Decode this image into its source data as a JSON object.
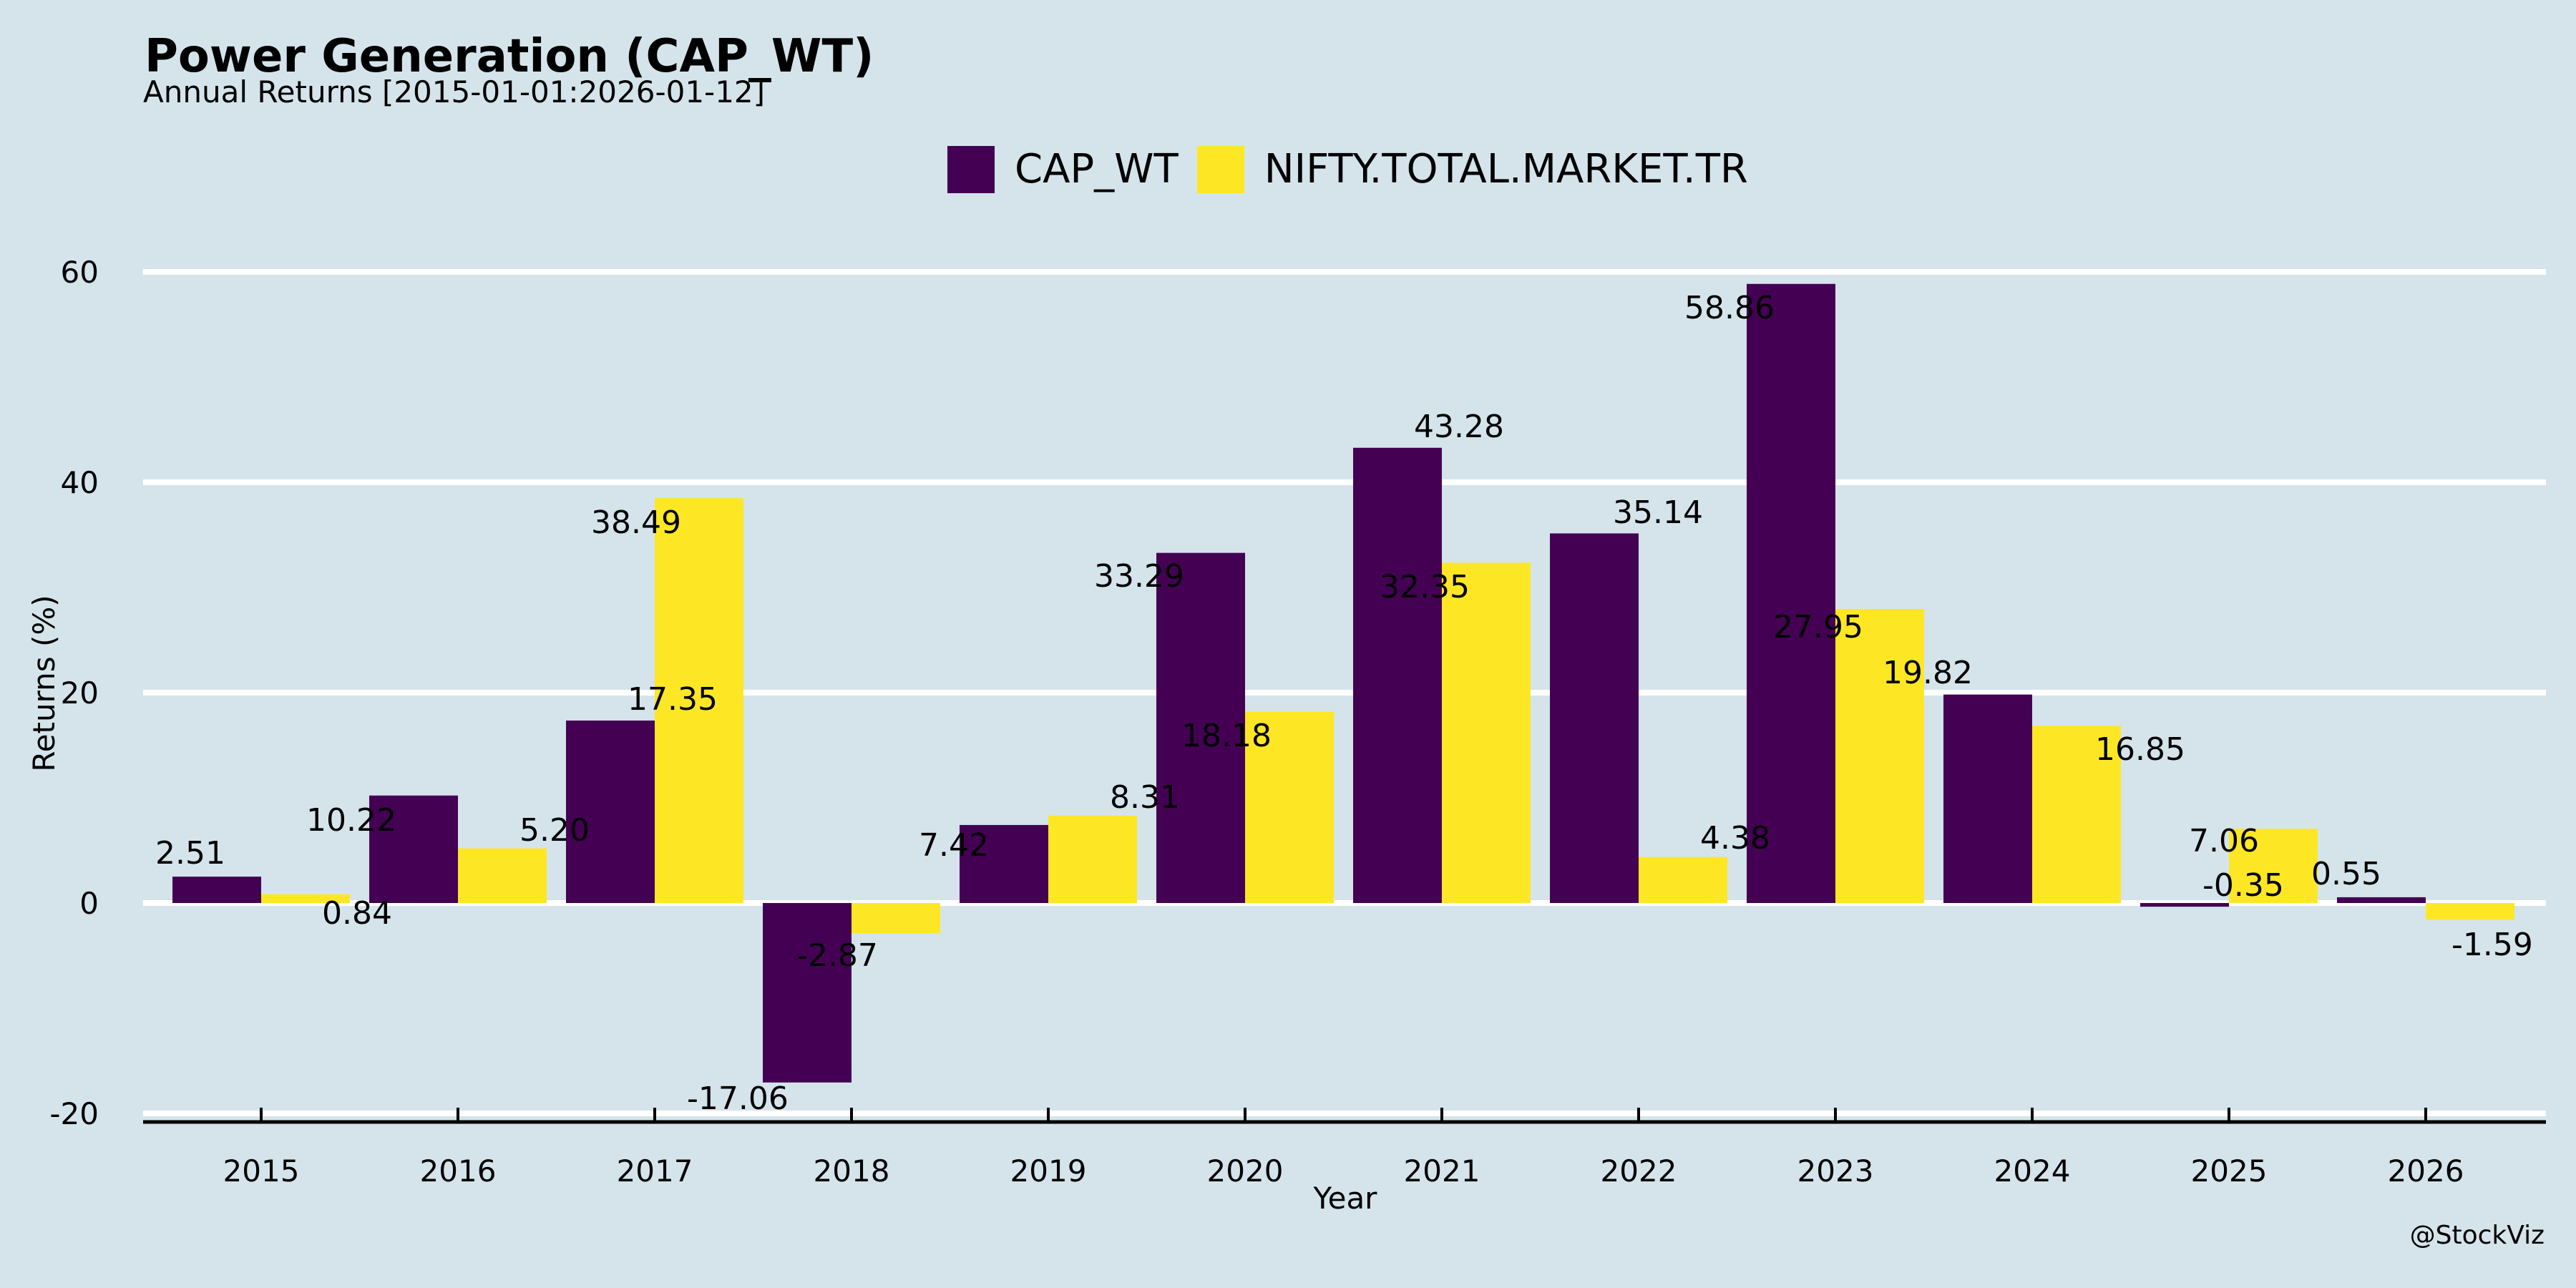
{
  "header": {
    "title": "Power Generation (CAP_WT)",
    "subtitle": "Annual Returns [2015-01-01:2026-01-12]"
  },
  "legend": [
    {
      "name": "CAP_WT",
      "color": "#440154"
    },
    {
      "name": "NIFTY.TOTAL.MARKET.TR",
      "color": "#fde725"
    }
  ],
  "watermark": "@StockViz",
  "chart_data": {
    "type": "bar",
    "title": "Power Generation (CAP_WT)",
    "subtitle": "Annual Returns [2015-01-01:2026-01-12]",
    "xlabel": "Year",
    "ylabel": "Returns (%)",
    "categories": [
      "2015",
      "2016",
      "2017",
      "2018",
      "2019",
      "2020",
      "2021",
      "2022",
      "2023",
      "2024",
      "2025",
      "2026"
    ],
    "series": [
      {
        "name": "CAP_WT",
        "color": "#440154",
        "values": [
          2.51,
          10.22,
          17.35,
          -17.06,
          7.42,
          33.29,
          43.28,
          35.14,
          58.86,
          19.82,
          -0.35,
          0.55
        ],
        "labels": [
          "2.51",
          "10.22",
          "17.35",
          "-17.06",
          "7.42",
          "33.29",
          "43.28",
          "35.14",
          "58.86",
          "19.82",
          "-0.35",
          "0.55"
        ]
      },
      {
        "name": "NIFTY.TOTAL.MARKET.TR",
        "color": "#fde725",
        "values": [
          0.84,
          5.2,
          38.49,
          -2.87,
          8.31,
          18.18,
          32.35,
          4.38,
          27.95,
          16.85,
          7.06,
          -1.59
        ],
        "labels": [
          "0.84",
          "5.20",
          "38.49",
          "-2.87",
          "8.31",
          "18.18",
          "32.35",
          "4.38",
          "27.95",
          "16.85",
          "7.06",
          "-1.59"
        ]
      }
    ],
    "yticks": [
      -20,
      0,
      20,
      40,
      60
    ],
    "ytick_labels": [
      "-20",
      "0",
      "20",
      "40",
      "60"
    ],
    "ylim": [
      -20.8,
      68
    ],
    "grid": "horizontal",
    "legend_position": "top-center",
    "background": "#d5e4eb",
    "grid_color": "#ffffff"
  }
}
